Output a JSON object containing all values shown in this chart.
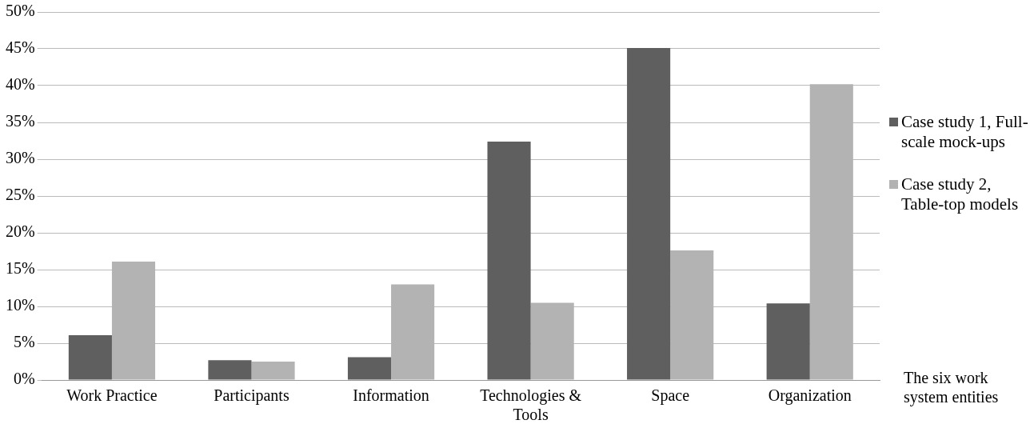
{
  "chart_data": {
    "type": "bar",
    "categories": [
      "Work Practice",
      "Participants",
      "Information",
      "Technologies & Tools",
      "Space",
      "Organization"
    ],
    "series": [
      {
        "name": "Case study 1, Full-scale mock-ups",
        "color": "#5f5f5f",
        "values": [
          6.1,
          2.7,
          3.1,
          32.4,
          45.1,
          10.4
        ]
      },
      {
        "name": "Case study 2, Table-top models",
        "color": "#b3b3b3",
        "values": [
          16.1,
          2.5,
          13.0,
          10.5,
          17.6,
          40.2
        ]
      }
    ],
    "xlabel": "The six work system entities",
    "ylim": [
      0,
      50
    ],
    "yticks": [
      {
        "value": 0,
        "label": "0%"
      },
      {
        "value": 5,
        "label": "5%"
      },
      {
        "value": 10,
        "label": "10%"
      },
      {
        "value": 15,
        "label": "15%"
      },
      {
        "value": 20,
        "label": "20%"
      },
      {
        "value": 25,
        "label": "25%"
      },
      {
        "value": 30,
        "label": "30%"
      },
      {
        "value": 35,
        "label": "35%"
      },
      {
        "value": 40,
        "label": "40%"
      },
      {
        "value": 45,
        "label": "45%"
      },
      {
        "value": 50,
        "label": "50%"
      }
    ],
    "grid": "y",
    "legend": "right"
  }
}
